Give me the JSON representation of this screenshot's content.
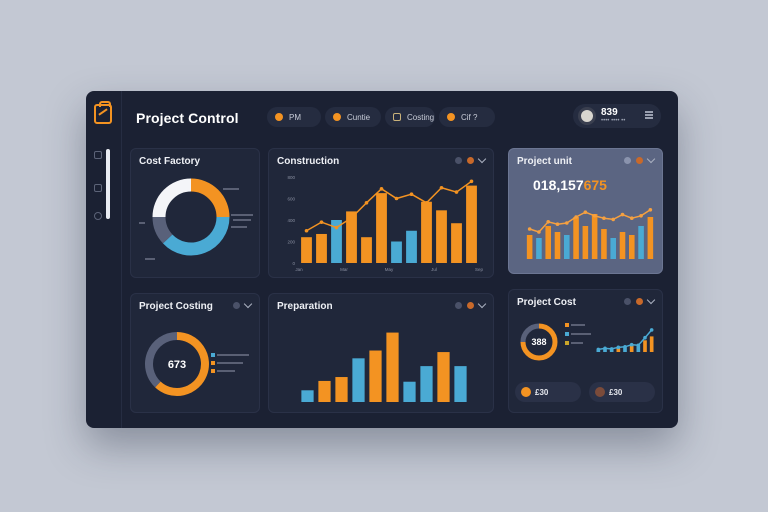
{
  "app": {
    "title": "Project Control"
  },
  "header": {
    "tabs": [
      {
        "label": "PM"
      },
      {
        "label": "Cuntie"
      },
      {
        "label": "Costing"
      },
      {
        "label": "Cif ?"
      }
    ],
    "user": {
      "count": "839",
      "subtitle": "•••• •••• ••"
    }
  },
  "colors": {
    "orange": "#f39322",
    "blue": "#4aaad4",
    "background": "#1b2133",
    "card": "#20273a",
    "highlight": "#5b6582"
  },
  "cards": {
    "cost_factory": {
      "title": "Cost Factory"
    },
    "construction": {
      "title": "Construction"
    },
    "project_unit": {
      "title": "Project unit",
      "value_white": "018,157",
      "value_orange": "675"
    },
    "project_costing": {
      "title": "Project Costing",
      "center_value": "673"
    },
    "preparation": {
      "title": "Preparation"
    },
    "project_cost": {
      "title": "Project Cost",
      "center_value": "388",
      "chip_left": "£30",
      "chip_right": "£30"
    }
  },
  "chart_data": [
    {
      "id": "cost-factory-donut",
      "type": "pie",
      "title": "Cost Factory",
      "values": [
        25,
        38,
        12,
        25
      ],
      "colors": [
        "#f39322",
        "#4aaad4",
        "#59617a",
        "#f4f5f8"
      ]
    },
    {
      "id": "construction-bars",
      "type": "bar",
      "title": "Construction",
      "ylim": [
        0,
        800
      ],
      "y_ticks": [
        "0",
        "200",
        "400",
        "600",
        "800"
      ],
      "x_labels": [
        "Jan",
        "Mar",
        "May",
        "Jul",
        "Sep"
      ],
      "values": [
        240,
        270,
        400,
        480,
        240,
        650,
        200,
        300,
        570,
        490,
        370,
        720
      ],
      "line": [
        300,
        380,
        330,
        420,
        560,
        690,
        600,
        640,
        560,
        700,
        660,
        760
      ]
    },
    {
      "id": "project-unit-bars",
      "type": "bar",
      "title": "Project unit",
      "ylim": [
        0,
        100
      ],
      "values": [
        40,
        35,
        55,
        45,
        40,
        70,
        55,
        75,
        50,
        35,
        45,
        40,
        55,
        70
      ],
      "line": [
        50,
        45,
        62,
        58,
        60,
        70,
        78,
        72,
        68,
        66,
        74,
        68,
        72,
        82
      ]
    },
    {
      "id": "project-costing-donut",
      "type": "pie",
      "title": "Project Costing",
      "values": [
        62,
        38
      ],
      "colors": [
        "#f39322",
        "#59617a"
      ]
    },
    {
      "id": "preparation-bars",
      "type": "bar",
      "title": "Preparation",
      "ylim": [
        0,
        1000
      ],
      "values": [
        150,
        270,
        320,
        560,
        660,
        890,
        260,
        460,
        640,
        460
      ],
      "line": []
    },
    {
      "id": "project-cost-donut",
      "type": "pie",
      "title": "Project Cost",
      "values": [
        75,
        25
      ],
      "colors": [
        "#f39322",
        "#59617a"
      ]
    },
    {
      "id": "project-cost-mini-bars",
      "type": "bar",
      "title": "Project Cost",
      "ylim": [
        0,
        100
      ],
      "values": [
        10,
        15,
        12,
        20,
        18,
        30,
        25,
        45,
        60
      ],
      "line": [
        10,
        14,
        12,
        18,
        20,
        28,
        26,
        55,
        85
      ]
    }
  ]
}
